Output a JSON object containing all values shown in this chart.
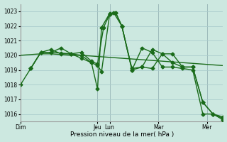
{
  "background_color": "#cce8e0",
  "grid_color": "#aacccc",
  "line_color": "#1a6b1a",
  "xlabel": "Pression niveau de la mer( hPa )",
  "ylim": [
    1015.5,
    1023.5
  ],
  "yticks": [
    1016,
    1017,
    1018,
    1019,
    1020,
    1021,
    1022,
    1023
  ],
  "day_labels": [
    "Dim",
    "Jeu",
    "Lun",
    "Mar",
    "Mer"
  ],
  "day_x": [
    0,
    38,
    44,
    68,
    92
  ],
  "xlim": [
    0,
    100
  ],
  "lines": [
    {
      "x": [
        0,
        5,
        10,
        15,
        20,
        25,
        30,
        35,
        40,
        45,
        50,
        55,
        60,
        65,
        70,
        75,
        80,
        85,
        90,
        95,
        100
      ],
      "y": [
        1020.0,
        1020.05,
        1020.1,
        1020.1,
        1020.05,
        1020.0,
        1020.0,
        1019.95,
        1019.9,
        1019.85,
        1019.8,
        1019.75,
        1019.7,
        1019.65,
        1019.6,
        1019.55,
        1019.5,
        1019.45,
        1019.4,
        1019.35,
        1019.3
      ],
      "marker": false,
      "lw": 1.0
    },
    {
      "x": [
        0,
        5,
        10,
        15,
        20,
        25,
        30,
        35,
        38,
        40,
        44,
        46,
        50,
        55,
        60,
        65,
        70,
        75,
        80,
        85,
        90,
        95,
        100
      ],
      "y": [
        1018.0,
        1019.1,
        1020.2,
        1020.2,
        1020.15,
        1020.1,
        1020.0,
        1019.5,
        1017.7,
        1021.9,
        1022.85,
        1022.9,
        1022.0,
        1019.1,
        1019.2,
        1019.1,
        1020.1,
        1020.1,
        1019.2,
        1019.2,
        1016.8,
        1016.0,
        1015.7
      ],
      "marker": true,
      "lw": 1.0
    },
    {
      "x": [
        5,
        10,
        15,
        20,
        25,
        30,
        35,
        38,
        41,
        44,
        47,
        50,
        55,
        60,
        65,
        70,
        75,
        80,
        85,
        90,
        95,
        100
      ],
      "y": [
        1019.1,
        1020.2,
        1020.2,
        1020.5,
        1020.1,
        1020.2,
        1019.6,
        1019.4,
        1021.9,
        1022.8,
        1022.9,
        1022.0,
        1019.0,
        1019.2,
        1020.4,
        1020.1,
        1019.5,
        1019.2,
        1019.2,
        1016.8,
        1016.0,
        1015.6
      ],
      "marker": true,
      "lw": 1.0
    },
    {
      "x": [
        5,
        10,
        15,
        20,
        25,
        30,
        35,
        38,
        40,
        44,
        47,
        50,
        55,
        60,
        65,
        70,
        75,
        80,
        85,
        90,
        95,
        100
      ],
      "y": [
        1019.1,
        1020.2,
        1020.4,
        1020.1,
        1020.1,
        1019.8,
        1019.5,
        1019.3,
        1018.9,
        1022.8,
        1022.9,
        1022.0,
        1019.0,
        1020.5,
        1020.2,
        1019.2,
        1019.2,
        1019.1,
        1019.0,
        1016.0,
        1016.0,
        1015.8
      ],
      "marker": true,
      "lw": 1.0
    }
  ]
}
